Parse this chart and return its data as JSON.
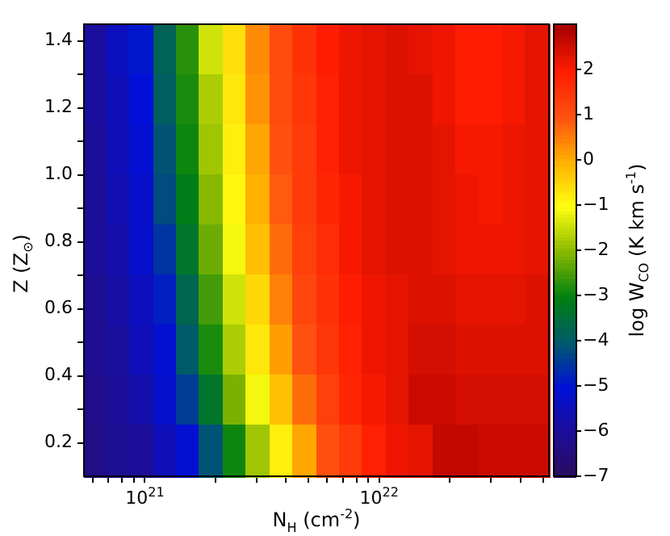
{
  "chart_data": {
    "type": "heatmap",
    "xlabel": "N$_{H}$ (cm$^{-2}$)",
    "ylabel": "Z (Z$_{⊙}$)",
    "clabel": "log W$_{CO}$ (K km s$^{-1}$)",
    "log": "x",
    "xlim": [
      5.5e+20,
      5.3e+22
    ],
    "ylim": [
      0.1,
      1.45
    ],
    "xticks": [
      {
        "value": 6e+20,
        "label": null
      },
      {
        "value": 7e+20,
        "label": null
      },
      {
        "value": 8e+20,
        "label": null
      },
      {
        "value": 9e+20,
        "label": null
      },
      {
        "value": 1e+21,
        "label": "10$^{21}$"
      },
      {
        "value": 2e+21,
        "label": null
      },
      {
        "value": 3e+21,
        "label": null
      },
      {
        "value": 4e+21,
        "label": null
      },
      {
        "value": 5e+21,
        "label": null
      },
      {
        "value": 6e+21,
        "label": null
      },
      {
        "value": 7e+21,
        "label": null
      },
      {
        "value": 8e+21,
        "label": null
      },
      {
        "value": 9e+21,
        "label": null
      },
      {
        "value": 1e+22,
        "label": "10$^{22}$"
      },
      {
        "value": 2e+22,
        "label": null
      },
      {
        "value": 3e+22,
        "label": null
      },
      {
        "value": 4e+22,
        "label": null
      },
      {
        "value": 5e+22,
        "label": null
      }
    ],
    "yticks": [
      0.2,
      {
        "value": 0.3,
        "label": null
      },
      0.4,
      {
        "value": 0.5,
        "label": null
      },
      0.6,
      {
        "value": 0.7,
        "label": null
      },
      0.8,
      {
        "value": 0.9,
        "label": null
      },
      {
        "value": 1,
        "label": "1.0"
      },
      {
        "value": 1.1,
        "label": null
      },
      1.2,
      {
        "value": 1.3,
        "label": null
      },
      1.4
    ],
    "clim": [
      -7,
      3
    ],
    "cticks": [
      -7,
      -6,
      -5,
      -4,
      -3,
      -2,
      -1,
      0,
      1,
      2
    ],
    "cells": [
      [
        -5.9,
        -5.4,
        -4.9,
        -3.8,
        -2.7,
        -1.4,
        -0.6,
        0.4,
        1.1,
        1.6,
        2.0,
        2.2,
        2.3,
        2.4,
        2.3,
        2.2,
        2.0,
        2.0,
        2.1,
        2.3
      ],
      [
        -5.9,
        -5.5,
        -5.0,
        -3.9,
        -2.8,
        -1.7,
        -0.7,
        0.3,
        1.1,
        1.5,
        1.9,
        2.2,
        2.3,
        2.4,
        2.4,
        2.2,
        2.0,
        2.0,
        2.1,
        2.3
      ],
      [
        -6.0,
        -5.5,
        -5.1,
        -4.1,
        -2.9,
        -1.8,
        -0.8,
        0.1,
        1.0,
        1.4,
        1.9,
        2.2,
        2.3,
        2.4,
        2.4,
        2.3,
        2.1,
        2.1,
        2.2,
        2.3
      ],
      [
        -6.0,
        -5.6,
        -5.2,
        -4.2,
        -3.1,
        -2.0,
        -0.9,
        0.0,
        0.9,
        1.4,
        1.8,
        2.1,
        2.3,
        2.4,
        2.4,
        2.3,
        2.2,
        2.1,
        2.2,
        2.3
      ],
      [
        -6.0,
        -5.7,
        -5.2,
        -4.5,
        -3.3,
        -2.2,
        -1.1,
        -0.2,
        0.7,
        1.3,
        1.7,
        2.1,
        2.3,
        2.4,
        2.4,
        2.3,
        2.2,
        2.2,
        2.2,
        2.3
      ],
      [
        -6.1,
        -5.8,
        -5.4,
        -4.8,
        -3.7,
        -2.5,
        -1.4,
        -0.5,
        0.5,
        1.2,
        1.6,
        2.0,
        2.2,
        2.3,
        2.4,
        2.4,
        2.3,
        2.3,
        2.3,
        2.4
      ],
      [
        -6.1,
        -5.9,
        -5.5,
        -5.1,
        -4.0,
        -2.8,
        -1.7,
        -0.7,
        0.2,
        1.0,
        1.5,
        1.9,
        2.2,
        2.3,
        2.5,
        2.5,
        2.4,
        2.4,
        2.4,
        2.4
      ],
      [
        -6.2,
        -6.0,
        -5.7,
        -5.2,
        -4.4,
        -3.3,
        -2.1,
        -1.1,
        -0.2,
        0.7,
        1.3,
        1.8,
        2.1,
        2.3,
        2.6,
        2.6,
        2.5,
        2.5,
        2.5,
        2.5
      ],
      [
        -6.3,
        -6.1,
        -6.0,
        -5.5,
        -5.1,
        -4.1,
        -2.9,
        -1.8,
        -0.8,
        0.1,
        1.0,
        1.4,
        1.9,
        2.2,
        2.3,
        2.7,
        2.7,
        2.6,
        2.6,
        2.6
      ]
    ]
  }
}
